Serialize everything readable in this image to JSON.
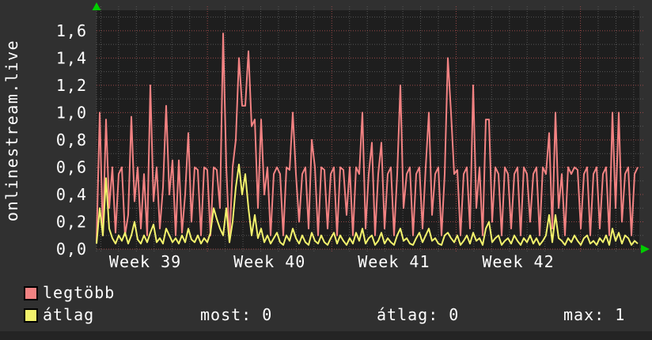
{
  "title": "onlinestream.live",
  "colors": {
    "background": "#303030",
    "plot_background": "#1e1e1e",
    "grid_minor": "#565656",
    "grid_major": "#994747",
    "axis_arrow": "#00cc00",
    "series_max": "#f28282",
    "series_avg": "#f3f36c",
    "text": "#ffffff"
  },
  "chart_data": {
    "type": "line",
    "title": "onlinestream.live",
    "grid": true,
    "legend_position": "bottom-left",
    "x_axis": {
      "tick_labels": [
        "Week 39",
        "Week 40",
        "Week 41",
        "Week 42"
      ],
      "minor_divisions_per_week": 7
    },
    "y_axis": {
      "tick_labels": [
        "0,0",
        "0,2",
        "0,4",
        "0,6",
        "0,8",
        "1,0",
        "1,2",
        "1,4",
        "1,6"
      ],
      "min": 0,
      "max": 1.75,
      "major_step": 0.2,
      "minor_step": 0.1
    },
    "series": [
      {
        "name": "legtöbb",
        "color": "#f28282",
        "values": [
          0.05,
          1.0,
          0.1,
          0.95,
          0.3,
          0.6,
          0.12,
          0.55,
          0.6,
          0.1,
          0.25,
          0.97,
          0.35,
          0.6,
          0.15,
          0.55,
          0.1,
          1.2,
          0.35,
          0.6,
          0.15,
          0.45,
          1.05,
          0.4,
          0.65,
          0.1,
          0.65,
          0.12,
          0.4,
          0.85,
          0.2,
          0.6,
          0.58,
          0.1,
          0.6,
          0.58,
          0.1,
          0.6,
          0.58,
          0.3,
          1.58,
          0.6,
          0.05,
          0.6,
          0.8,
          1.4,
          1.05,
          1.05,
          1.45,
          0.9,
          0.95,
          0.3,
          0.95,
          0.4,
          0.6,
          0.1,
          0.55,
          0.6,
          0.55,
          0.1,
          0.6,
          0.58,
          1.0,
          0.55,
          0.2,
          0.55,
          0.6,
          0.15,
          0.8,
          0.6,
          0.1,
          0.6,
          0.58,
          0.15,
          0.55,
          0.6,
          0.1,
          0.6,
          0.58,
          0.25,
          0.6,
          0.1,
          0.6,
          0.55,
          1.0,
          0.15,
          0.55,
          0.78,
          0.1,
          0.55,
          0.78,
          0.15,
          0.55,
          0.6,
          0.1,
          0.55,
          1.2,
          0.3,
          0.55,
          0.6,
          0.1,
          0.55,
          0.6,
          0.15,
          0.6,
          1.0,
          0.25,
          0.55,
          0.6,
          0.1,
          0.55,
          1.4,
          1.0,
          0.55,
          0.58,
          0.1,
          0.55,
          0.6,
          0.15,
          1.2,
          0.3,
          0.6,
          0.1,
          0.95,
          0.95,
          0.2,
          0.6,
          0.55,
          0.1,
          0.6,
          0.55,
          0.15,
          0.55,
          0.6,
          0.1,
          0.6,
          0.55,
          0.2,
          0.55,
          0.6,
          0.1,
          0.6,
          0.55,
          0.85,
          0.15,
          1.0,
          0.3,
          0.55,
          0.1,
          0.6,
          0.55,
          0.6,
          0.58,
          0.15,
          0.55,
          0.6,
          0.1,
          0.55,
          0.6,
          0.15,
          0.55,
          0.6,
          0.1,
          1.0,
          0.3,
          1.0,
          0.2,
          0.55,
          0.6,
          0.1,
          0.55,
          0.6
        ]
      },
      {
        "name": "átlag",
        "color": "#f3f36c",
        "values": [
          0.04,
          0.3,
          0.1,
          0.52,
          0.15,
          0.08,
          0.04,
          0.1,
          0.06,
          0.12,
          0.04,
          0.1,
          0.2,
          0.07,
          0.04,
          0.1,
          0.05,
          0.12,
          0.18,
          0.05,
          0.08,
          0.04,
          0.15,
          0.1,
          0.05,
          0.08,
          0.04,
          0.1,
          0.05,
          0.15,
          0.07,
          0.05,
          0.1,
          0.04,
          0.08,
          0.05,
          0.12,
          0.3,
          0.22,
          0.15,
          0.1,
          0.3,
          0.05,
          0.2,
          0.45,
          0.62,
          0.4,
          0.55,
          0.3,
          0.1,
          0.25,
          0.08,
          0.15,
          0.05,
          0.1,
          0.04,
          0.08,
          0.12,
          0.05,
          0.03,
          0.1,
          0.06,
          0.15,
          0.08,
          0.04,
          0.1,
          0.05,
          0.03,
          0.12,
          0.06,
          0.04,
          0.1,
          0.05,
          0.03,
          0.08,
          0.12,
          0.04,
          0.1,
          0.06,
          0.03,
          0.08,
          0.04,
          0.12,
          0.06,
          0.15,
          0.04,
          0.08,
          0.1,
          0.03,
          0.06,
          0.12,
          0.04,
          0.08,
          0.05,
          0.03,
          0.1,
          0.15,
          0.06,
          0.08,
          0.04,
          0.03,
          0.08,
          0.12,
          0.05,
          0.1,
          0.15,
          0.06,
          0.08,
          0.04,
          0.03,
          0.1,
          0.12,
          0.08,
          0.05,
          0.1,
          0.03,
          0.06,
          0.1,
          0.04,
          0.12,
          0.06,
          0.08,
          0.03,
          0.15,
          0.2,
          0.05,
          0.08,
          0.1,
          0.03,
          0.06,
          0.08,
          0.04,
          0.1,
          0.06,
          0.03,
          0.08,
          0.05,
          0.1,
          0.04,
          0.08,
          0.03,
          0.06,
          0.1,
          0.25,
          0.05,
          0.25,
          0.08,
          0.06,
          0.03,
          0.08,
          0.05,
          0.1,
          0.06,
          0.03,
          0.08,
          0.1,
          0.04,
          0.06,
          0.03,
          0.08,
          0.05,
          0.1,
          0.03,
          0.15,
          0.06,
          0.12,
          0.04,
          0.1,
          0.08,
          0.03,
          0.06,
          0.04
        ]
      }
    ]
  },
  "legend": {
    "items": [
      {
        "label": "legtöbb",
        "color": "#f28282"
      },
      {
        "label": "átlag",
        "color": "#f3f36c"
      }
    ],
    "stats": [
      {
        "text": "most: 0"
      },
      {
        "text": "átlag: 0"
      },
      {
        "text": "max: 1"
      }
    ]
  }
}
